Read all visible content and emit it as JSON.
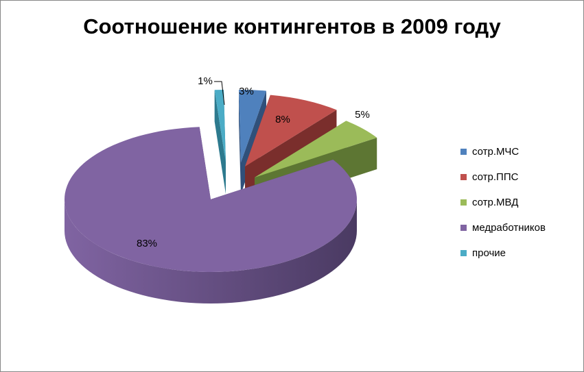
{
  "chart_data": {
    "type": "pie",
    "title": "Соотношение контингентов в 2009 году",
    "categories": [
      "сотр.МЧС",
      "сотр.ППС",
      "сотр.МВД",
      "медработников",
      "прочие"
    ],
    "values": [
      3,
      8,
      5,
      83,
      1
    ],
    "value_labels": [
      "3%",
      "8%",
      "5%",
      "83%",
      "1%"
    ],
    "colors": [
      "#4F81BD",
      "#C0504D",
      "#9BBB59",
      "#8064A2",
      "#4BACC6"
    ],
    "side_colors": [
      "#30507A",
      "#7A2E2C",
      "#5D7633",
      "#4A3A62",
      "#2D7A8E"
    ],
    "legend_position": "right",
    "three_d": true,
    "exploded": true
  }
}
